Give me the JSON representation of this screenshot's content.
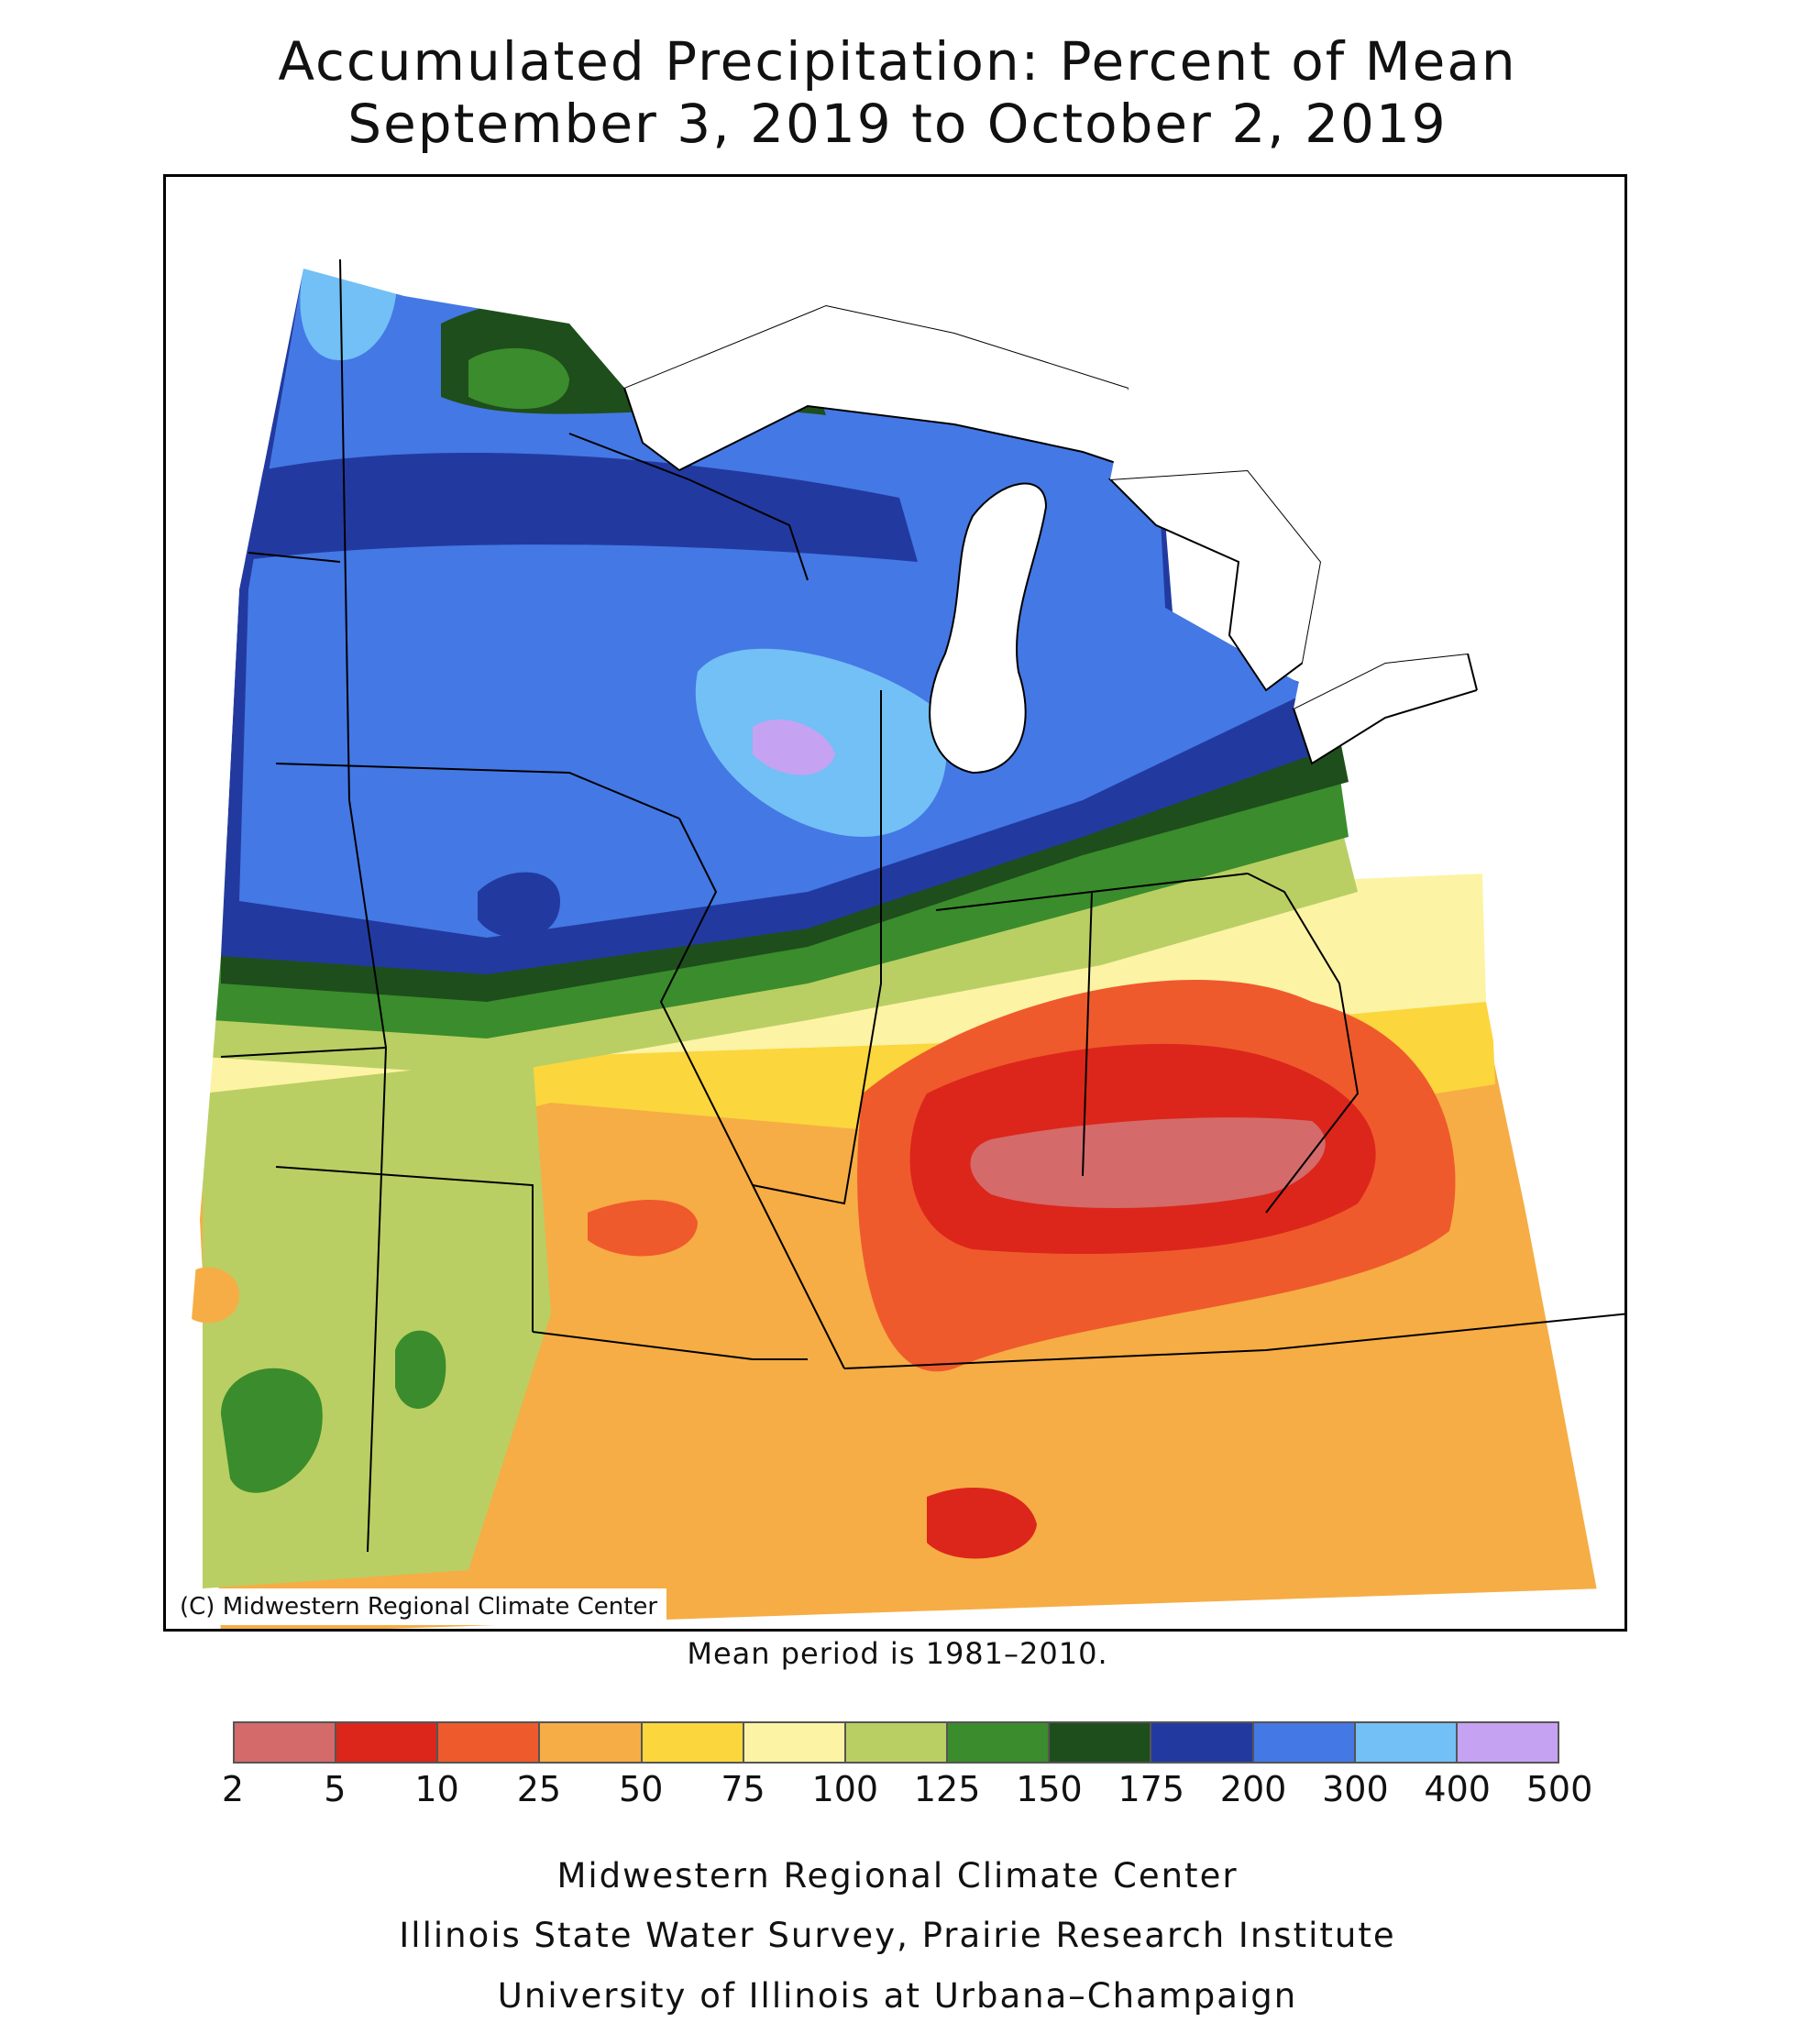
{
  "title": {
    "line1": "Accumulated Precipitation: Percent of Mean",
    "line2": "September 3, 2019 to October 2, 2019"
  },
  "map": {
    "copyright": "(C) Midwestern Regional Climate Center",
    "mean_note": "Mean period is 1981–2010."
  },
  "legend": {
    "ticks": [
      "2",
      "5",
      "10",
      "25",
      "50",
      "75",
      "100",
      "125",
      "150",
      "175",
      "200",
      "300",
      "400",
      "500"
    ],
    "colors": [
      "#d46a6a",
      "#dc261b",
      "#ef5a2c",
      "#f6ad45",
      "#fbd63d",
      "#fcf3a4",
      "#b9cf63",
      "#3b8c2c",
      "#1e4e1c",
      "#223a9f",
      "#4478e5",
      "#72c0f5",
      "#c6a2f2"
    ]
  },
  "credits": {
    "line1": "Midwestern Regional Climate Center",
    "line2": "Illinois State Water Survey, Prairie Research Institute",
    "line3": "University of Illinois at Urbana–Champaign"
  }
}
